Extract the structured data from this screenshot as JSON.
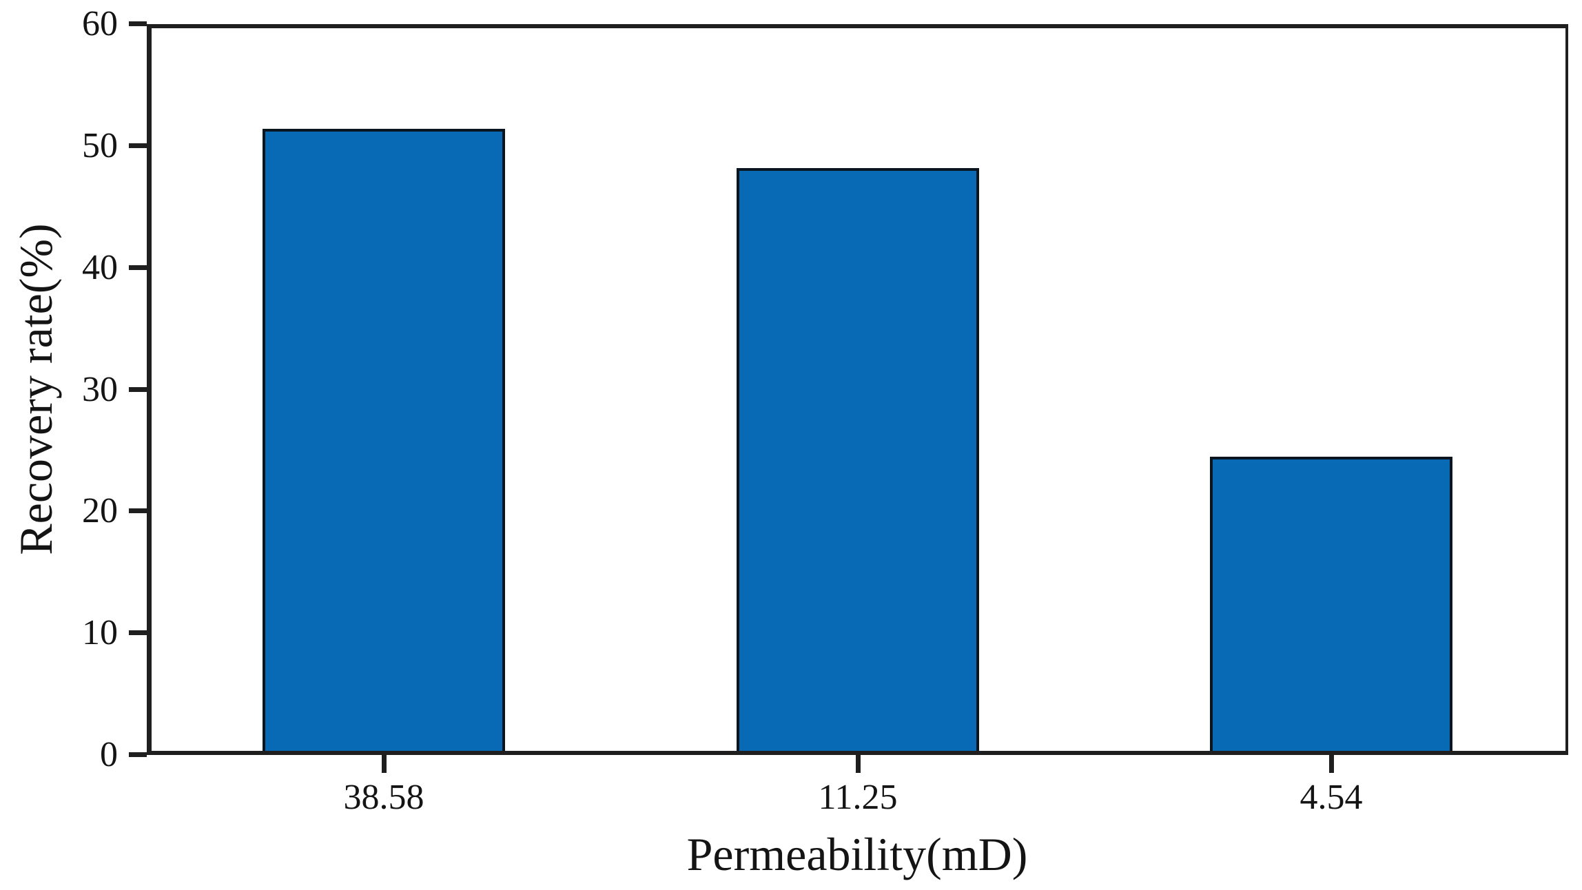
{
  "chart_data": {
    "type": "bar",
    "title": "",
    "categories": [
      "38.58",
      "11.25",
      "4.54"
    ],
    "values": [
      51.4,
      48.2,
      24.5
    ],
    "xlabel": "Permeability(mD)",
    "ylabel": "Recovery rate(%)",
    "ylim": [
      0,
      60
    ],
    "yticks": [
      0,
      10,
      20,
      30,
      40,
      50,
      60
    ],
    "grid": false,
    "legend": "none",
    "bar_color": "#0869b4",
    "bar_edge_color": "#0a1520",
    "axis_color": "#1f1f1f",
    "text_color": "#141414"
  }
}
